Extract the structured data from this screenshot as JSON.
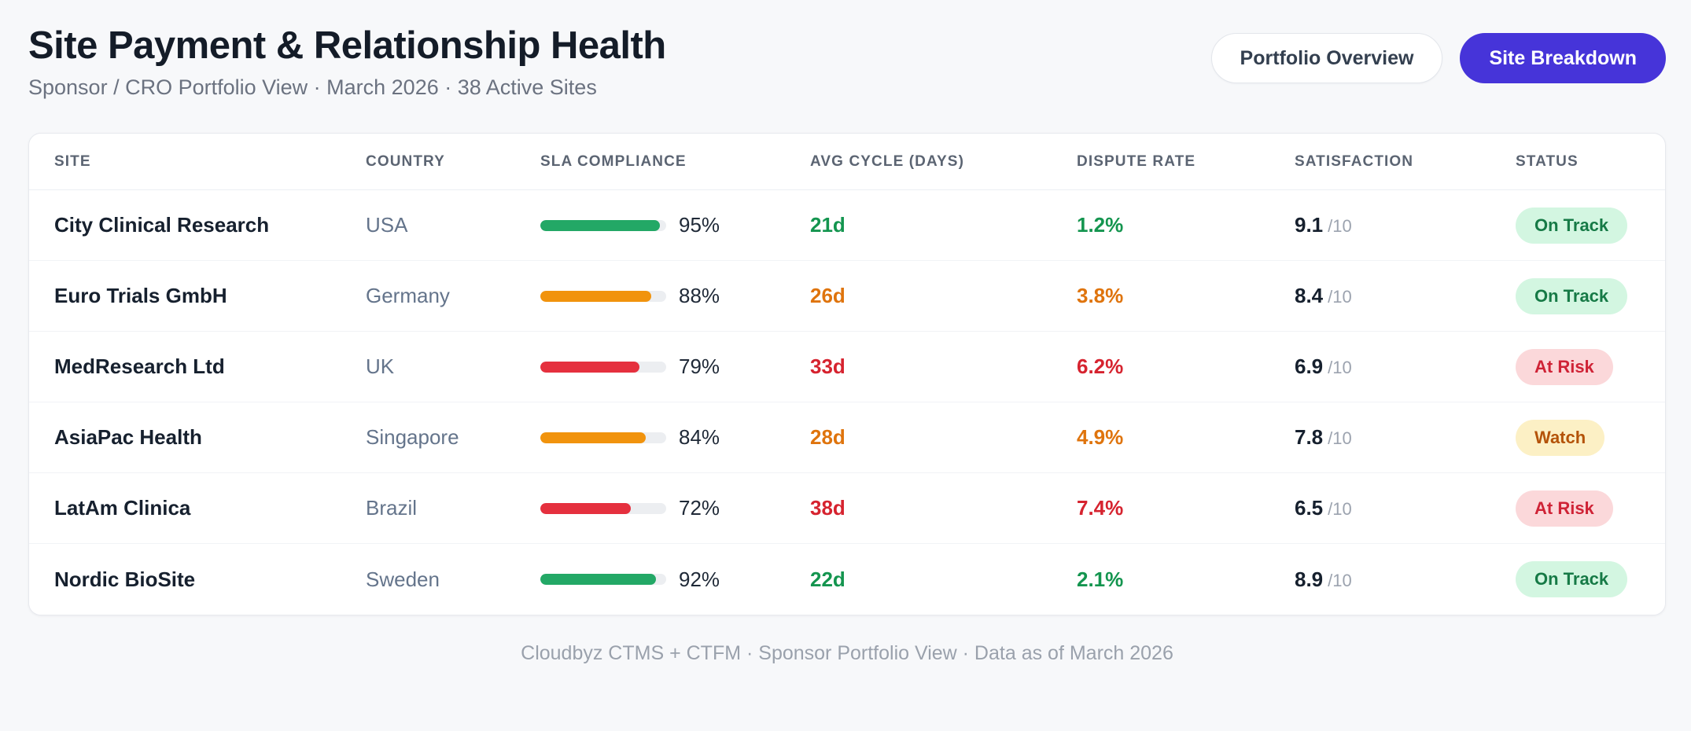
{
  "page": {
    "title": "Site Payment & Relationship Health",
    "subtitle": "Sponsor / CRO Portfolio View · March 2026 · 38 Active Sites",
    "footer": "Cloudbyz CTMS + CTFM · Sponsor Portfolio View · Data as of March 2026"
  },
  "toolbar": {
    "portfolio_overview_label": "Portfolio Overview",
    "site_breakdown_label": "Site Breakdown",
    "active_view": "Site Breakdown",
    "primary_color": "#4634d9"
  },
  "table": {
    "columns": [
      "Site",
      "Country",
      "SLA Compliance",
      "Avg Cycle (Days)",
      "Dispute Rate",
      "Satisfaction",
      "Status"
    ],
    "rows": [
      {
        "site": "City Clinical Research",
        "country": "USA",
        "sla_pct": 95,
        "sla_label": "95%",
        "tone": "good",
        "cycle": "21d",
        "dispute": "1.2%",
        "satisfaction": "9.1",
        "satisfaction_max": "/10",
        "status": "On Track",
        "status_tone": "good"
      },
      {
        "site": "Euro Trials GmbH",
        "country": "Germany",
        "sla_pct": 88,
        "sla_label": "88%",
        "tone": "warn",
        "cycle": "26d",
        "dispute": "3.8%",
        "satisfaction": "8.4",
        "satisfaction_max": "/10",
        "status": "On Track",
        "status_tone": "good"
      },
      {
        "site": "MedResearch Ltd",
        "country": "UK",
        "sla_pct": 79,
        "sla_label": "79%",
        "tone": "bad",
        "cycle": "33d",
        "dispute": "6.2%",
        "satisfaction": "6.9",
        "satisfaction_max": "/10",
        "status": "At Risk",
        "status_tone": "bad"
      },
      {
        "site": "AsiaPac Health",
        "country": "Singapore",
        "sla_pct": 84,
        "sla_label": "84%",
        "tone": "warn",
        "cycle": "28d",
        "dispute": "4.9%",
        "satisfaction": "7.8",
        "satisfaction_max": "/10",
        "status": "Watch",
        "status_tone": "warn"
      },
      {
        "site": "LatAm Clinica",
        "country": "Brazil",
        "sla_pct": 72,
        "sla_label": "72%",
        "tone": "bad",
        "cycle": "38d",
        "dispute": "7.4%",
        "satisfaction": "6.5",
        "satisfaction_max": "/10",
        "status": "At Risk",
        "status_tone": "bad"
      },
      {
        "site": "Nordic BioSite",
        "country": "Sweden",
        "sla_pct": 92,
        "sla_label": "92%",
        "tone": "good",
        "cycle": "22d",
        "dispute": "2.1%",
        "satisfaction": "8.9",
        "satisfaction_max": "/10",
        "status": "On Track",
        "status_tone": "good"
      }
    ]
  },
  "status_colors": {
    "good_text": "#167a46",
    "good_bg": "#d3f6e1",
    "warn_text": "#b45309",
    "warn_bg": "#fcf0c5",
    "bad_text": "#cf2336",
    "bad_bg": "#fbd8da",
    "bar_good": "#23a866",
    "bar_warn": "#f1930d",
    "bar_bad": "#e5303e"
  }
}
